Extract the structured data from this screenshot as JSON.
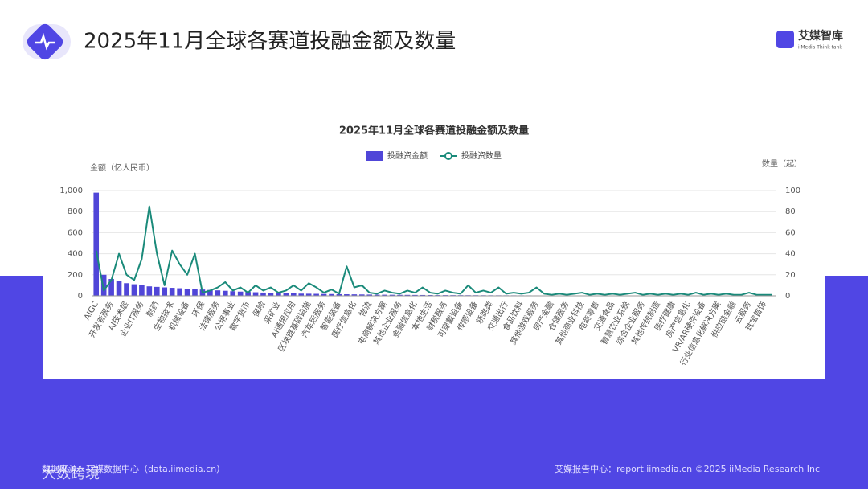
{
  "header": {
    "title": "2025年11月全球各赛道投融金额及数量"
  },
  "logo": {
    "name": "艾媒智库",
    "subtitle": "iiMedia Think tank"
  },
  "footer": {
    "left": "数据来源：艾媒数据中心（data.iimedia.cn）",
    "right": "艾媒报告中心：report.iimedia.cn  ©2025 iiMedia Research Inc"
  },
  "watermark": "大数跨境",
  "chart_data": {
    "type": "bar_line",
    "title": "2025年11月全球各赛道投融金额及数量",
    "ylabel": "金额（亿人民币）",
    "y2label": "数量（起）",
    "categories": [
      "AIGC",
      null,
      "开发者服务",
      null,
      "AI技术层",
      null,
      "企业IT服务",
      null,
      "制药",
      null,
      "生物技术",
      null,
      "机械设备",
      null,
      "环保",
      null,
      "法律服务",
      null,
      "公用事业",
      null,
      "数字货币",
      null,
      "保险",
      null,
      "采矿业",
      null,
      "AI通用应用",
      null,
      "区块链基础设施",
      null,
      "汽车后服务",
      null,
      "智能装备",
      null,
      "医疗信息化",
      null,
      "物流",
      null,
      "电商解决方案",
      null,
      "其他企业服务",
      null,
      "金融信息化",
      null,
      "本地生活",
      null,
      "财税服务",
      null,
      "可穿戴设备",
      null,
      "传感设备",
      null,
      "轿跑类",
      null,
      "交通出行",
      null,
      "食品饮料",
      null,
      "其他游戏服务",
      null,
      "房产金融",
      null,
      "仓储服务",
      null,
      "其他商业科技",
      null,
      "电商零售",
      null,
      "交通食品",
      null,
      "智慧农业系统",
      null,
      "综合企业服务",
      null,
      "其他传统制造",
      null,
      "医疗健康",
      null,
      "房产信息化",
      null,
      "VR/AR硬件设备",
      null,
      "行业信息化解决方案",
      null,
      "供应链金融",
      null,
      "云服务",
      null,
      "珠宝首饰",
      null
    ],
    "series": [
      {
        "name": "投融资金额",
        "color": "#5046d8",
        "values": [
          980,
          200,
          160,
          140,
          120,
          110,
          100,
          90,
          85,
          80,
          76,
          72,
          68,
          64,
          60,
          56,
          52,
          48,
          44,
          40,
          37,
          34,
          31,
          29,
          27,
          25,
          23,
          21,
          20,
          19,
          18,
          17,
          16,
          15,
          14,
          13,
          12,
          11,
          10.5,
          10,
          9.5,
          9,
          8.5,
          8,
          7.5,
          7,
          6.8,
          6.5,
          6.2,
          6,
          5.8,
          5.5,
          5.2,
          5,
          4.8,
          4.6,
          4.4,
          4.2,
          4,
          3.8,
          3.6,
          3.4,
          3.2,
          3,
          2.9,
          2.8,
          2.7,
          2.6,
          2.5,
          2.4,
          2.3,
          2.2,
          2.1,
          2,
          1.9,
          1.8,
          1.7,
          1.6,
          1.5,
          1.4,
          1.3,
          1.2,
          1.1,
          1,
          0.9,
          0.8,
          0.7,
          0.6,
          0.5,
          0.4
        ]
      },
      {
        "name": "投融资数量",
        "color": "#1a8a7a",
        "axis": "y2",
        "values": [
          43,
          5,
          15,
          40,
          20,
          15,
          35,
          85,
          40,
          10,
          43,
          30,
          20,
          40,
          3,
          5,
          8,
          13,
          5,
          8,
          3,
          10,
          5,
          8,
          3,
          5,
          10,
          5,
          12,
          8,
          3,
          6,
          2,
          28,
          8,
          10,
          3,
          2,
          5,
          3,
          2,
          5,
          3,
          8,
          3,
          2,
          5,
          3,
          2,
          10,
          3,
          5,
          3,
          8,
          2,
          3,
          2,
          3,
          8,
          2,
          1,
          2,
          1,
          2,
          3,
          1,
          2,
          1,
          2,
          1,
          2,
          3,
          1,
          2,
          1,
          2,
          1,
          2,
          1,
          3,
          1,
          2,
          1,
          2,
          1,
          1,
          3,
          1,
          1,
          1
        ]
      }
    ],
    "ylim": [
      0,
      1000
    ],
    "yticks": [
      0,
      200,
      400,
      600,
      800,
      {
        "value": 1000,
        "label": "1,000"
      }
    ],
    "y2lim": [
      0,
      100
    ],
    "y2ticks": [
      0,
      20,
      40,
      60,
      80,
      100
    ],
    "grid": true
  }
}
